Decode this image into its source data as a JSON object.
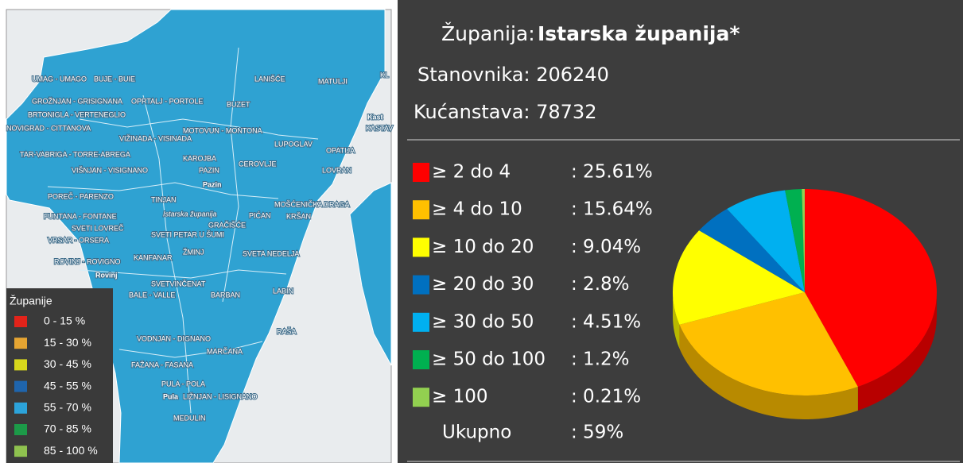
{
  "map": {
    "labels": [
      "KL",
      "UMAG - UMAGO",
      "BUJE - BUIE",
      "LANIŠĆE",
      "MATULJI",
      "GROŽNJAN - GRISIGNANA",
      "OPRTALJ - PORTOLE",
      "BUZET",
      "BRTONIGLA - VERTENEGLIO",
      "NOVIGRAD - CITTANOVA",
      "Kast",
      "KASTAV",
      "MOTOVUN - MONTONA",
      "VIŽINADA - VISINADA",
      "LUPOGLAV",
      "OPATIJA",
      "TAR-VABRIGA - TORRE-ABREGA",
      "KAROJBA",
      "CEROVLJE",
      "VIŠNJAN - VISIGNANO",
      "PAZIN",
      "LOVRAN",
      "Pazin",
      "POREČ - PARENZO",
      "TINJAN",
      "MOŠĆENIČKA DRAGA",
      "Istarska županija",
      "FUNTANA - FONTANE",
      "PIĆAN",
      "KRŠAN",
      "GRAČIŠĆE",
      "SVETI LOVREČ",
      "SVETI PETAR U ŠUMI",
      "VRSAR - ORSERA",
      "ŽMINJ",
      "SVETA NEDELJA",
      "KANFANAR",
      "ROVINJ - ROVIGNO",
      "Rovinj",
      "SVETVINČENAT",
      "LABIN",
      "BALE - VALLE",
      "BARBAN",
      "RAŠA",
      "VODNJAN - DIGNANO",
      "MARČANA",
      "FAŽANA - FASANA",
      "PULA - POLA",
      "Pula",
      "LIŽNJAN - LISIGNANO",
      "MEDULIN"
    ],
    "legend": {
      "title": "Županije",
      "items": [
        {
          "label": "0 - 15 %",
          "color": "#e2231a"
        },
        {
          "label": "15 - 30 %",
          "color": "#e6a532"
        },
        {
          "label": "30 - 45 %",
          "color": "#d8d81c"
        },
        {
          "label": "45 - 55 %",
          "color": "#1f65ad"
        },
        {
          "label": "55 - 70 %",
          "color": "#2ca3da"
        },
        {
          "label": "70 - 85 %",
          "color": "#1c9a48"
        },
        {
          "label": "85 - 100 %",
          "color": "#8fc24f"
        }
      ]
    }
  },
  "header": {
    "county_label": "Županija:",
    "county_name": "Istarska županija*",
    "population": "Stanovnika: 206240",
    "households": "Kućanstava: 78732"
  },
  "chart_data": {
    "type": "pie",
    "categories": [
      "≥ 2 do 4",
      "≥ 4 do 10",
      "≥ 10 do 20",
      "≥ 20 do 30",
      "≥ 30 do 50",
      "≥ 50 do 100",
      "≥ 100"
    ],
    "values": [
      25.61,
      15.64,
      9.04,
      2.8,
      4.51,
      1.2,
      0.21
    ],
    "value_labels": [
      ": 25.61%",
      ": 15.64%",
      ": 9.04%",
      ": 2.8%",
      ": 4.51%",
      ": 1.2%",
      ": 0.21%"
    ],
    "colors": [
      "#ff0000",
      "#ffc000",
      "#ffff00",
      "#0070c0",
      "#00b0f0",
      "#00b050",
      "#92d050"
    ],
    "total": {
      "label": "Ukupno",
      "value": 59,
      "value_label": ": 59%"
    }
  }
}
